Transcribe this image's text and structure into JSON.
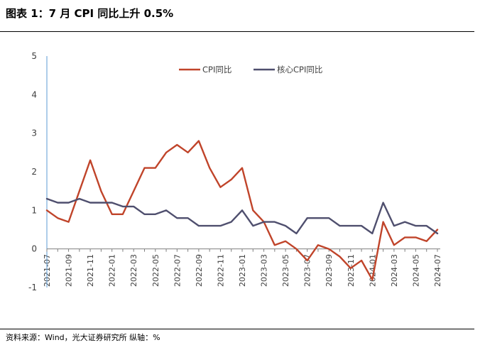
{
  "title": "图表 1：7 月 CPI 同比上升 0.5%",
  "source": "资料来源：Wind，光大证券研究所   纵轴：%",
  "colors": {
    "cpi": "#C0442A",
    "core": "#4F4F6E",
    "axis": "#5B9BD5"
  },
  "chart_data": {
    "type": "line",
    "title": "图表 1：7 月 CPI 同比上升 0.5%",
    "xlabel": "",
    "ylabel": "",
    "ylim": [
      -1,
      5
    ],
    "yticks": [
      -1,
      0,
      1,
      2,
      3,
      4,
      5
    ],
    "grid": false,
    "legend": "top-center",
    "x": [
      "2021-07",
      "2021-08",
      "2021-09",
      "2021-10",
      "2021-11",
      "2021-12",
      "2022-01",
      "2022-02",
      "2022-03",
      "2022-04",
      "2022-05",
      "2022-06",
      "2022-07",
      "2022-08",
      "2022-09",
      "2022-10",
      "2022-11",
      "2022-12",
      "2023-01",
      "2023-02",
      "2023-03",
      "2023-04",
      "2023-05",
      "2023-06",
      "2023-07",
      "2023-08",
      "2023-09",
      "2023-10",
      "2023-11",
      "2023-12",
      "2024-01",
      "2024-02",
      "2024-03",
      "2024-04",
      "2024-05",
      "2024-06",
      "2024-07"
    ],
    "xtick_labels": [
      "2021-07",
      "2021-09",
      "2021-11",
      "2022-01",
      "2022-03",
      "2022-05",
      "2022-07",
      "2022-09",
      "2022-11",
      "2023-01",
      "2023-03",
      "2023-05",
      "2023-07",
      "2023-09",
      "2023-11",
      "2024-01",
      "2024-03",
      "2024-05",
      "2024-07"
    ],
    "series": [
      {
        "name": "CPI同比",
        "values": [
          1.0,
          0.8,
          0.7,
          1.5,
          2.3,
          1.5,
          0.9,
          0.9,
          1.5,
          2.1,
          2.1,
          2.5,
          2.7,
          2.5,
          2.8,
          2.1,
          1.6,
          1.8,
          2.1,
          1.0,
          0.7,
          0.1,
          0.2,
          0.0,
          -0.3,
          0.1,
          0.0,
          -0.2,
          -0.5,
          -0.3,
          -0.8,
          0.7,
          0.1,
          0.3,
          0.3,
          0.2,
          0.5
        ]
      },
      {
        "name": "核心CPI同比",
        "values": [
          1.3,
          1.2,
          1.2,
          1.3,
          1.2,
          1.2,
          1.2,
          1.1,
          1.1,
          0.9,
          0.9,
          1.0,
          0.8,
          0.8,
          0.6,
          0.6,
          0.6,
          0.7,
          1.0,
          0.6,
          0.7,
          0.7,
          0.6,
          0.4,
          0.8,
          0.8,
          0.8,
          0.6,
          0.6,
          0.6,
          0.4,
          1.2,
          0.6,
          0.7,
          0.6,
          0.6,
          0.4
        ]
      }
    ]
  }
}
